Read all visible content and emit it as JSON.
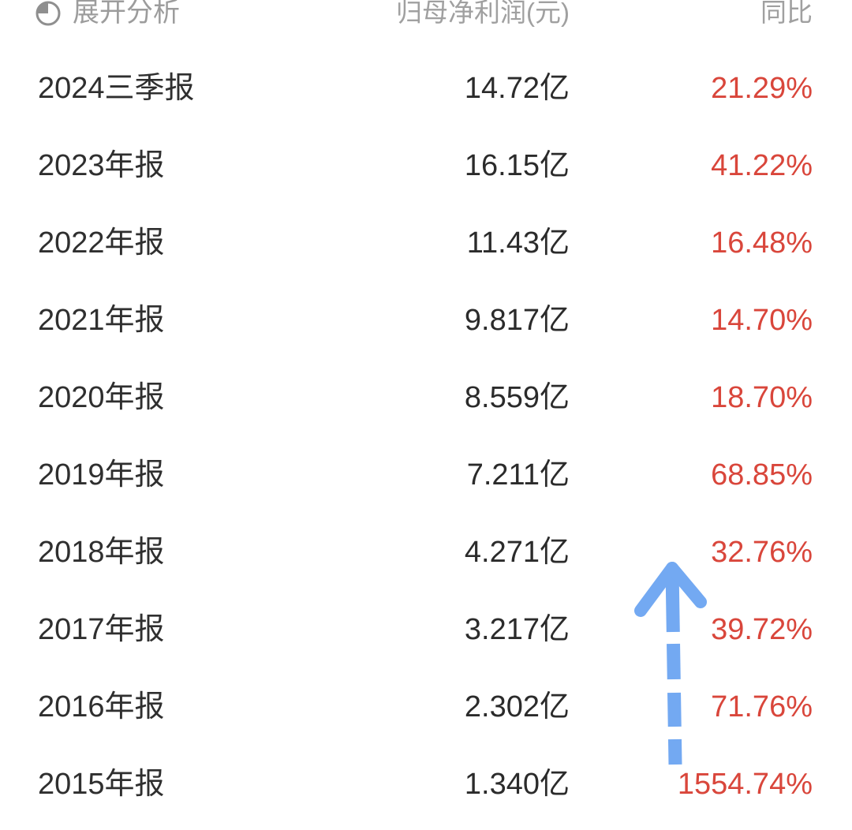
{
  "table": {
    "expand_label": "展开分析",
    "columns": {
      "profit": "归母净利润(元)",
      "yoy": "同比"
    },
    "rows": [
      {
        "period": "2024三季报",
        "profit": "14.72亿",
        "yoy": "21.29%"
      },
      {
        "period": "2023年报",
        "profit": "16.15亿",
        "yoy": "41.22%"
      },
      {
        "period": "2022年报",
        "profit": "11.43亿",
        "yoy": "16.48%"
      },
      {
        "period": "2021年报",
        "profit": "9.817亿",
        "yoy": "14.70%"
      },
      {
        "period": "2020年报",
        "profit": "8.559亿",
        "yoy": "18.70%"
      },
      {
        "period": "2019年报",
        "profit": "7.211亿",
        "yoy": "68.85%"
      },
      {
        "period": "2018年报",
        "profit": "4.271亿",
        "yoy": "32.76%"
      },
      {
        "period": "2017年报",
        "profit": "3.217亿",
        "yoy": "39.72%"
      },
      {
        "period": "2016年报",
        "profit": "2.302亿",
        "yoy": "71.76%"
      },
      {
        "period": "2015年报",
        "profit": "1.340亿",
        "yoy": "1554.74%"
      }
    ]
  },
  "icons": {
    "expand": "pie-chart-icon",
    "annotation": "hand-drawn-up-arrow"
  },
  "colors": {
    "background": "#ffffff",
    "header_gray": "#9c9c9c",
    "text_dark": "#2f2f2f",
    "yoy_red": "#d9463b",
    "arrow_blue": "#73a9f2"
  }
}
